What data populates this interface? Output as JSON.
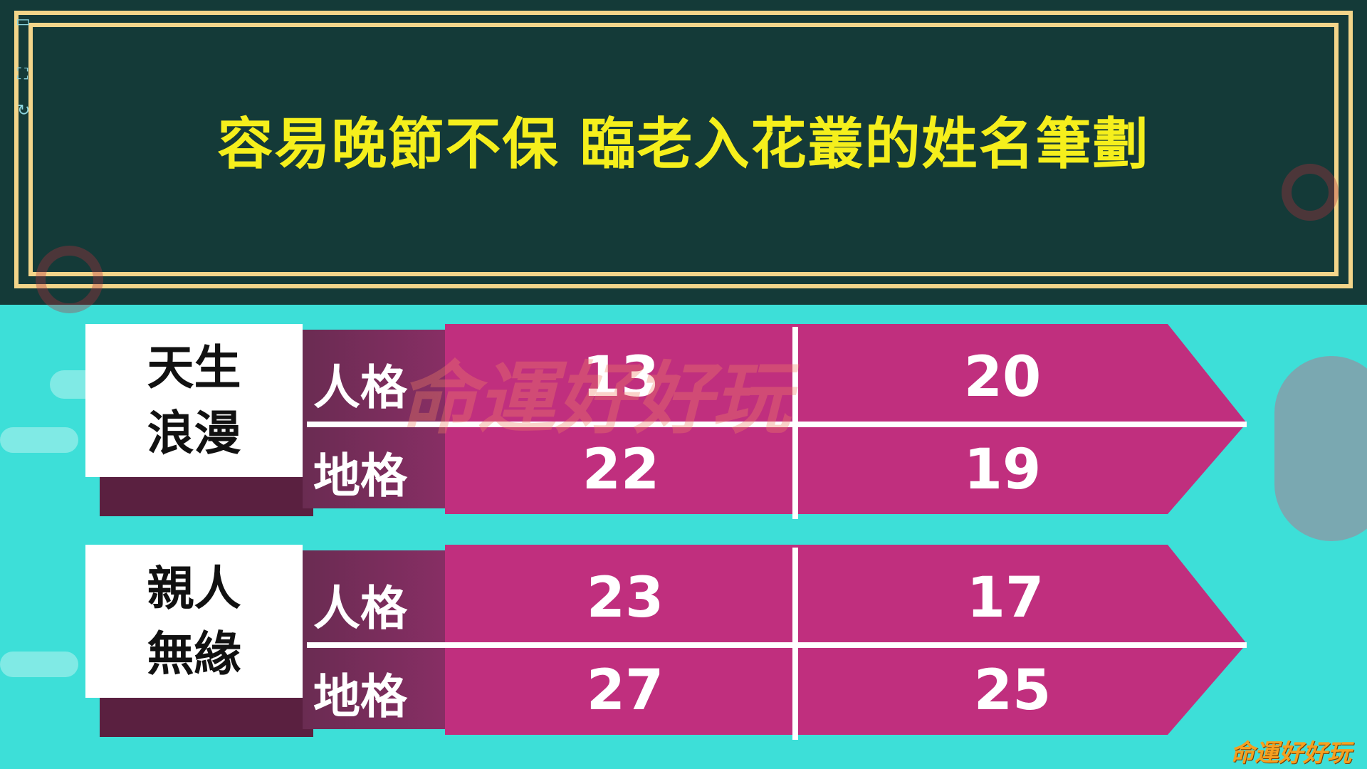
{
  "title": "容易晚節不保 臨老入花叢的姓名筆劃",
  "watermark": "命運好好玩",
  "logo": "命運好好玩",
  "colors": {
    "header_bg": "#143a38",
    "title": "#f5ef1c",
    "frame": "#f3d58a",
    "background": "#3ddfd8",
    "band": "#c02f7e"
  },
  "groups": [
    {
      "label_line1": "天生",
      "label_line2": "浪漫",
      "rows": [
        {
          "label": "人格",
          "values": [
            "13",
            "20"
          ]
        },
        {
          "label": "地格",
          "values": [
            "22",
            "19"
          ]
        }
      ]
    },
    {
      "label_line1": "親人",
      "label_line2": "無緣",
      "rows": [
        {
          "label": "人格",
          "values": [
            "23",
            "17"
          ]
        },
        {
          "label": "地格",
          "values": [
            "27",
            "25"
          ]
        }
      ]
    }
  ]
}
